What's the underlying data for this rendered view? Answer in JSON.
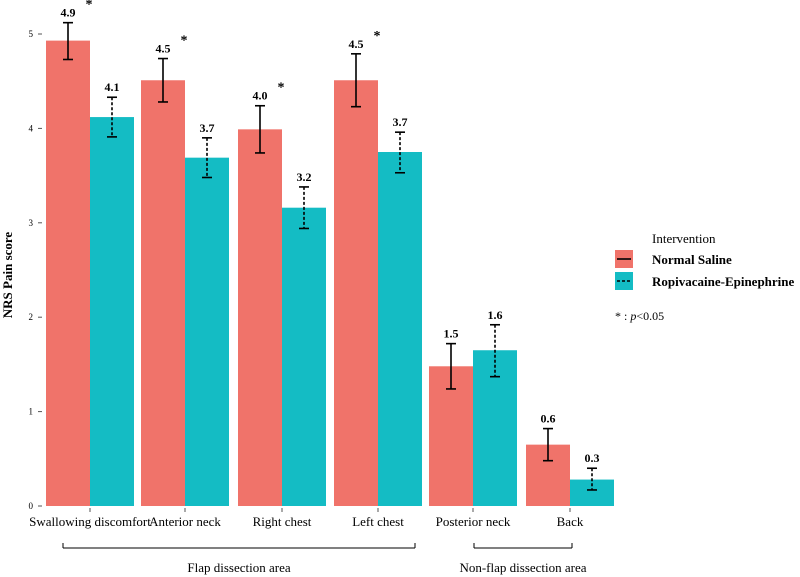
{
  "chart_data": {
    "type": "bar",
    "ylabel": "NRS Pain score",
    "ylim": [
      0,
      5.3
    ],
    "yticks": [
      0,
      1,
      2,
      3,
      4,
      5
    ],
    "categories": [
      "Swallowing discomfort",
      "Anterior neck",
      "Right chest",
      "Left chest",
      "Posterior neck",
      "Back"
    ],
    "series": [
      {
        "name": "Normal Saline",
        "color": "#f0736a",
        "errorbar_style": "solid",
        "values": [
          4.93,
          4.51,
          3.99,
          4.51,
          1.48,
          0.65
        ],
        "labels": [
          "4.9",
          "4.5",
          "4.0",
          "4.5",
          "1.5",
          "0.6"
        ],
        "error_low": [
          4.73,
          4.28,
          3.74,
          4.23,
          1.24,
          0.48
        ],
        "error_high": [
          5.12,
          4.74,
          4.24,
          4.79,
          1.72,
          0.82
        ]
      },
      {
        "name": "Ropivacaine-Epinephrine",
        "color": "#14bcc4",
        "errorbar_style": "dashed",
        "values": [
          4.12,
          3.69,
          3.16,
          3.75,
          1.65,
          0.28
        ],
        "labels": [
          "4.1",
          "3.7",
          "3.2",
          "3.7",
          "1.6",
          "0.3"
        ],
        "error_low": [
          3.91,
          3.48,
          2.94,
          3.53,
          1.37,
          0.17
        ],
        "error_high": [
          4.33,
          3.9,
          3.38,
          3.96,
          1.92,
          0.4
        ]
      }
    ],
    "significance": [
      true,
      true,
      true,
      true,
      false,
      false
    ],
    "significance_marker": "*",
    "groups": [
      {
        "label": "Flap dissection area",
        "from": 0,
        "to": 3
      },
      {
        "label": "Non-flap dissection area",
        "from": 4,
        "to": 5
      }
    ],
    "legend": {
      "title": "Intervention",
      "position": "right",
      "note_marker": "* : ",
      "note_p": "p",
      "note_rest": "<0.05"
    }
  }
}
